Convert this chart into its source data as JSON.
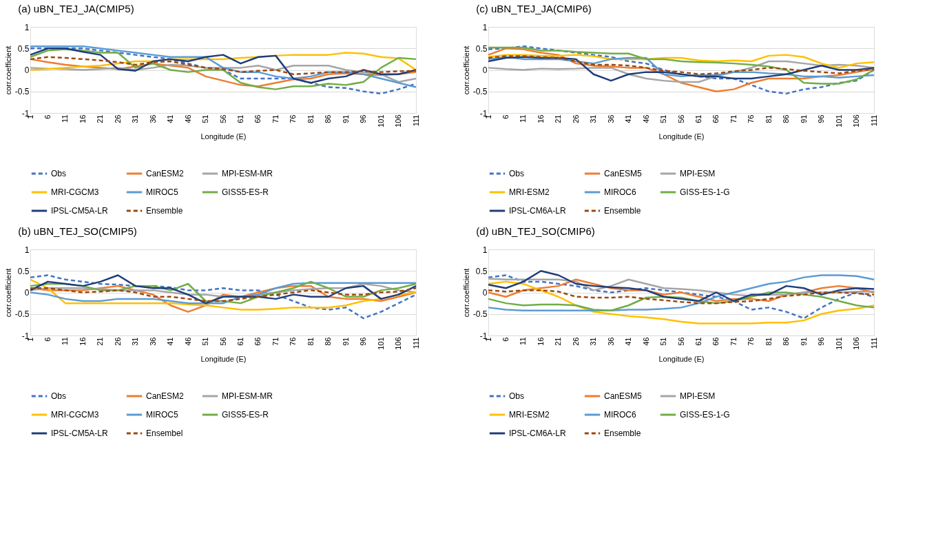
{
  "chart_data": [
    {
      "type": "line",
      "title": "uBN_TEJ_JA(CMIP5)",
      "annotations": [
        "(a)"
      ],
      "xlabel": "Longitude (E)",
      "ylabel": "corr.coefficient",
      "x": [
        1,
        6,
        11,
        16,
        21,
        26,
        31,
        36,
        41,
        46,
        51,
        56,
        61,
        66,
        71,
        76,
        81,
        86,
        91,
        96,
        101,
        106,
        111
      ],
      "xlim": [
        1,
        111
      ],
      "xticks": [
        1,
        6,
        11,
        16,
        21,
        26,
        31,
        36,
        41,
        46,
        51,
        56,
        61,
        66,
        71,
        76,
        81,
        86,
        91,
        96,
        101,
        106,
        111
      ],
      "ylim": [
        -1,
        1
      ],
      "yticks": [
        -1,
        -0.5,
        0,
        0.5,
        1
      ],
      "grid": "y",
      "legend": "bottom",
      "series": [
        {
          "name": "Obs",
          "color": "#4472c4",
          "line_style": "dashed",
          "values": [
            0.5,
            0.5,
            0.5,
            0.5,
            0.45,
            0.4,
            0.35,
            0.3,
            0.25,
            0.15,
            0.05,
            0.0,
            -0.2,
            -0.2,
            -0.2,
            -0.2,
            -0.3,
            -0.4,
            -0.42,
            -0.5,
            -0.55,
            -0.45,
            -0.32
          ]
        },
        {
          "name": "CanESM2",
          "color": "#ed7d31",
          "values": [
            0.25,
            0.18,
            0.12,
            0.08,
            0.05,
            0.02,
            0.08,
            0.15,
            0.1,
            0.05,
            -0.15,
            -0.25,
            -0.35,
            -0.38,
            -0.3,
            -0.22,
            -0.2,
            -0.1,
            -0.08,
            -0.1,
            -0.12,
            -0.1,
            -0.05
          ]
        },
        {
          "name": "MPI-ESM-MR",
          "color": "#a5a5a5",
          "values": [
            0.05,
            0.03,
            0.02,
            0.0,
            0.02,
            0.05,
            0.0,
            0.05,
            0.12,
            0.1,
            0.05,
            0.05,
            0.05,
            0.1,
            0.0,
            0.1,
            0.1,
            0.1,
            0.0,
            -0.05,
            -0.1,
            -0.28,
            -0.2
          ]
        },
        {
          "name": "MRI-CGCM3",
          "color": "#ffc000",
          "values": [
            0.0,
            0.02,
            0.05,
            0.08,
            0.1,
            0.15,
            0.2,
            0.2,
            0.25,
            0.25,
            0.25,
            0.25,
            0.28,
            0.3,
            0.33,
            0.35,
            0.35,
            0.35,
            0.4,
            0.38,
            0.3,
            0.27,
            0.0
          ]
        },
        {
          "name": "MIROC5",
          "color": "#5b9bd5",
          "values": [
            0.55,
            0.55,
            0.55,
            0.55,
            0.5,
            0.45,
            0.4,
            0.35,
            0.3,
            0.3,
            0.3,
            0.05,
            -0.05,
            -0.05,
            -0.15,
            -0.2,
            -0.15,
            -0.05,
            -0.05,
            -0.1,
            -0.2,
            -0.3,
            -0.4
          ]
        },
        {
          "name": "GISS5-ES-R",
          "color": "#70ad47",
          "values": [
            0.3,
            0.45,
            0.48,
            0.45,
            0.4,
            0.4,
            0.05,
            0.15,
            0.0,
            -0.05,
            0.0,
            0.0,
            -0.3,
            -0.4,
            -0.45,
            -0.38,
            -0.38,
            -0.32,
            -0.35,
            -0.28,
            0.05,
            0.28,
            0.25
          ]
        },
        {
          "name": "IPSL-CM5A-LR",
          "color": "#1f3d7a",
          "values": [
            0.35,
            0.5,
            0.5,
            0.42,
            0.35,
            0.02,
            -0.02,
            0.2,
            0.25,
            0.2,
            0.3,
            0.35,
            0.15,
            0.3,
            0.33,
            -0.2,
            -0.3,
            -0.2,
            -0.15,
            0.0,
            -0.1,
            -0.1,
            0.0
          ]
        },
        {
          "name": "Ensemble",
          "color": "#9e480e",
          "line_style": "dashed",
          "values": [
            0.25,
            0.3,
            0.28,
            0.25,
            0.22,
            0.18,
            0.12,
            0.18,
            0.2,
            0.12,
            0.05,
            0.02,
            -0.05,
            -0.02,
            0.0,
            -0.1,
            -0.08,
            -0.05,
            -0.05,
            -0.03,
            -0.05,
            -0.03,
            -0.02
          ]
        }
      ]
    },
    {
      "type": "line",
      "title": "uBN_TEJ_JA(CMIP6)",
      "annotations": [
        "(c)"
      ],
      "xlabel": "Longitude (E)",
      "ylabel": "corr.coefficient",
      "x": [
        1,
        6,
        11,
        16,
        21,
        26,
        31,
        36,
        41,
        46,
        51,
        56,
        61,
        66,
        71,
        76,
        81,
        86,
        91,
        96,
        101,
        106,
        111
      ],
      "xlim": [
        1,
        111
      ],
      "xticks": [
        1,
        6,
        11,
        16,
        21,
        26,
        31,
        36,
        41,
        46,
        51,
        56,
        61,
        66,
        71,
        76,
        81,
        86,
        91,
        96,
        101,
        106,
        111
      ],
      "ylim": [
        -1,
        1
      ],
      "yticks": [
        -1,
        -0.5,
        0,
        0.5,
        1
      ],
      "grid": "y",
      "legend": "bottom",
      "series": [
        {
          "name": "Obs",
          "color": "#4472c4",
          "line_style": "dashed",
          "values": [
            0.48,
            0.5,
            0.55,
            0.5,
            0.45,
            0.4,
            0.35,
            0.3,
            0.2,
            0.15,
            0.0,
            -0.1,
            -0.15,
            -0.2,
            -0.2,
            -0.35,
            -0.5,
            -0.55,
            -0.45,
            -0.4,
            -0.3,
            -0.25,
            0.0
          ]
        },
        {
          "name": "CanESM5",
          "color": "#ed7d31",
          "values": [
            0.35,
            0.5,
            0.48,
            0.4,
            0.35,
            0.15,
            0.1,
            0.08,
            0.05,
            0.05,
            -0.1,
            -0.3,
            -0.4,
            -0.5,
            -0.45,
            -0.3,
            -0.2,
            -0.2,
            -0.2,
            -0.15,
            -0.12,
            -0.05,
            0.02
          ]
        },
        {
          "name": "MPI-ESM",
          "color": "#a5a5a5",
          "values": [
            0.05,
            0.02,
            0.0,
            0.03,
            0.02,
            0.03,
            0.05,
            0.05,
            -0.1,
            -0.2,
            -0.25,
            -0.28,
            -0.28,
            -0.15,
            -0.05,
            0.05,
            0.2,
            0.2,
            0.15,
            0.1,
            0.12,
            0.1,
            0.05
          ]
        },
        {
          "name": "MRI-ESM2",
          "color": "#ffc000",
          "values": [
            0.3,
            0.35,
            0.35,
            0.33,
            0.33,
            0.35,
            0.32,
            0.25,
            0.25,
            0.25,
            0.28,
            0.28,
            0.22,
            0.2,
            0.22,
            0.2,
            0.33,
            0.35,
            0.3,
            0.15,
            0.05,
            0.15,
            0.18
          ]
        },
        {
          "name": "MIROC6",
          "color": "#5b9bd5",
          "values": [
            0.25,
            0.3,
            0.25,
            0.25,
            0.25,
            0.2,
            0.15,
            0.25,
            0.28,
            0.28,
            -0.1,
            -0.15,
            -0.12,
            -0.12,
            -0.05,
            -0.05,
            -0.08,
            -0.1,
            -0.15,
            -0.15,
            -0.18,
            -0.15,
            -0.12
          ]
        },
        {
          "name": "GISS-ES-1-G",
          "color": "#70ad47",
          "values": [
            0.52,
            0.52,
            0.52,
            0.45,
            0.45,
            0.42,
            0.4,
            0.38,
            0.38,
            0.25,
            0.25,
            0.2,
            0.18,
            0.17,
            0.15,
            0.12,
            0.08,
            0.0,
            -0.3,
            -0.32,
            -0.32,
            -0.22,
            0.0
          ]
        },
        {
          "name": "IPSL-CM6A-LR",
          "color": "#1f3d7a",
          "values": [
            0.2,
            0.28,
            0.3,
            0.28,
            0.28,
            0.25,
            -0.1,
            -0.25,
            -0.1,
            -0.05,
            -0.05,
            -0.1,
            -0.15,
            -0.15,
            -0.2,
            -0.2,
            -0.15,
            -0.1,
            0.0,
            0.1,
            0.0,
            0.0,
            0.05
          ]
        },
        {
          "name": "Ensemble",
          "color": "#9e480e",
          "line_style": "dashed",
          "values": [
            0.28,
            0.32,
            0.32,
            0.3,
            0.28,
            0.2,
            0.12,
            0.12,
            0.1,
            0.05,
            -0.02,
            -0.05,
            -0.1,
            -0.08,
            -0.03,
            0.0,
            0.05,
            0.02,
            -0.02,
            -0.05,
            -0.08,
            -0.02,
            0.02
          ]
        }
      ]
    },
    {
      "type": "line",
      "title": "uBN_TEJ_SO(CMIP5)",
      "annotations": [
        "(b)"
      ],
      "xlabel": "Longitude (E)",
      "ylabel": "corr.coefficient",
      "x": [
        1,
        6,
        11,
        16,
        21,
        26,
        31,
        36,
        41,
        46,
        51,
        56,
        61,
        66,
        71,
        76,
        81,
        86,
        91,
        96,
        101,
        106,
        111
      ],
      "xlim": [
        1,
        111
      ],
      "xticks": [
        1,
        6,
        11,
        16,
        21,
        26,
        31,
        36,
        41,
        46,
        51,
        56,
        61,
        66,
        71,
        76,
        81,
        86,
        91,
        96,
        101,
        106,
        111
      ],
      "ylim": [
        -1,
        1
      ],
      "yticks": [
        -1,
        -0.5,
        0,
        0.5,
        1
      ],
      "grid": "y",
      "legend": "bottom",
      "series": [
        {
          "name": "Obs",
          "color": "#4472c4",
          "line_style": "dashed",
          "values": [
            0.35,
            0.4,
            0.3,
            0.25,
            0.2,
            0.18,
            0.15,
            0.15,
            0.12,
            0.05,
            0.05,
            0.1,
            0.05,
            0.05,
            -0.05,
            -0.2,
            -0.35,
            -0.4,
            -0.35,
            -0.6,
            -0.45,
            -0.25,
            -0.05
          ]
        },
        {
          "name": "CanESM2",
          "color": "#ed7d31",
          "values": [
            0.1,
            0.05,
            0.05,
            0.05,
            0.1,
            0.15,
            0.05,
            -0.05,
            -0.3,
            -0.45,
            -0.3,
            -0.05,
            -0.1,
            0.0,
            0.1,
            0.15,
            0.15,
            -0.1,
            -0.15,
            -0.15,
            -0.2,
            -0.1,
            0.0
          ]
        },
        {
          "name": "MPI-ESM-MR",
          "color": "#a5a5a5",
          "values": [
            0.05,
            0.1,
            0.1,
            0.1,
            0.08,
            0.05,
            0.05,
            0.05,
            0.0,
            -0.05,
            -0.05,
            -0.1,
            -0.1,
            -0.05,
            0.0,
            0.05,
            0.08,
            0.1,
            0.1,
            0.2,
            0.15,
            0.05,
            0.0
          ]
        },
        {
          "name": "MRI-CGCM3",
          "color": "#ffc000",
          "values": [
            0.3,
            0.1,
            -0.25,
            -0.25,
            -0.25,
            -0.25,
            -0.25,
            -0.25,
            -0.25,
            -0.28,
            -0.3,
            -0.35,
            -0.4,
            -0.4,
            -0.38,
            -0.35,
            -0.35,
            -0.35,
            -0.3,
            -0.2,
            -0.15,
            -0.05,
            0.0
          ]
        },
        {
          "name": "MIROC5",
          "color": "#5b9bd5",
          "values": [
            0.0,
            -0.05,
            -0.15,
            -0.2,
            -0.2,
            -0.15,
            -0.15,
            -0.15,
            -0.2,
            -0.25,
            -0.25,
            -0.25,
            -0.1,
            -0.05,
            0.1,
            0.2,
            0.22,
            0.22,
            0.22,
            0.22,
            0.22,
            0.22,
            0.22
          ]
        },
        {
          "name": "GISS5-ES-R",
          "color": "#70ad47",
          "values": [
            0.15,
            0.2,
            0.2,
            0.15,
            0.05,
            0.05,
            0.15,
            0.15,
            0.05,
            0.2,
            -0.2,
            -0.2,
            -0.25,
            -0.1,
            0.0,
            0.1,
            0.25,
            0.1,
            -0.1,
            -0.1,
            0.05,
            0.1,
            0.2
          ]
        },
        {
          "name": "IPSL-CM5A-LR",
          "color": "#1f3d7a",
          "values": [
            0.05,
            0.25,
            0.2,
            0.15,
            0.25,
            0.4,
            0.15,
            0.1,
            0.1,
            -0.05,
            -0.25,
            -0.1,
            -0.1,
            -0.1,
            -0.15,
            -0.05,
            -0.1,
            -0.1,
            0.1,
            0.15,
            -0.15,
            -0.05,
            0.15
          ]
        },
        {
          "name": "Ensembel",
          "color": "#9e480e",
          "line_style": "dashed",
          "values": [
            0.1,
            0.1,
            0.05,
            0.0,
            0.02,
            0.05,
            0.0,
            -0.1,
            -0.1,
            -0.15,
            -0.2,
            -0.2,
            -0.15,
            -0.1,
            -0.05,
            0.0,
            0.05,
            0.0,
            -0.05,
            -0.05,
            0.0,
            0.02,
            0.1
          ]
        }
      ]
    },
    {
      "type": "line",
      "title": "uBN_TEJ_SO(CMIP6)",
      "annotations": [
        "(d)"
      ],
      "xlabel": "Longitude (E)",
      "ylabel": "corr.coefficient",
      "x": [
        1,
        6,
        11,
        16,
        21,
        26,
        31,
        36,
        41,
        46,
        51,
        56,
        61,
        66,
        71,
        76,
        81,
        86,
        91,
        96,
        101,
        106,
        111
      ],
      "xlim": [
        1,
        111
      ],
      "xticks": [
        1,
        6,
        11,
        16,
        21,
        26,
        31,
        36,
        41,
        46,
        51,
        56,
        61,
        66,
        71,
        76,
        81,
        86,
        91,
        96,
        101,
        106,
        111
      ],
      "ylim": [
        -1,
        1
      ],
      "yticks": [
        -1,
        -0.5,
        0,
        0.5,
        1
      ],
      "grid": "y",
      "legend": "bottom",
      "series": [
        {
          "name": "Obs",
          "color": "#4472c4",
          "line_style": "dashed",
          "values": [
            0.35,
            0.4,
            0.25,
            0.25,
            0.2,
            0.15,
            0.05,
            0.0,
            0.05,
            0.1,
            0.05,
            0.0,
            -0.05,
            -0.1,
            -0.2,
            -0.4,
            -0.35,
            -0.45,
            -0.6,
            -0.35,
            -0.15,
            0.0,
            -0.1
          ]
        },
        {
          "name": "CanESM5",
          "color": "#ed7d31",
          "values": [
            0.0,
            -0.1,
            0.05,
            0.1,
            0.15,
            0.3,
            0.2,
            0.1,
            0.05,
            0.05,
            -0.05,
            0.0,
            -0.1,
            -0.2,
            -0.15,
            -0.15,
            -0.2,
            -0.05,
            0.0,
            0.1,
            0.15,
            0.1,
            0.0
          ]
        },
        {
          "name": "MPI-ESM",
          "color": "#a5a5a5",
          "values": [
            0.32,
            0.3,
            0.3,
            0.3,
            0.3,
            0.25,
            0.05,
            0.15,
            0.3,
            0.2,
            0.1,
            0.08,
            0.05,
            0.0,
            -0.05,
            -0.08,
            -0.05,
            -0.05,
            0.0,
            0.0,
            0.0,
            0.02,
            0.02
          ]
        },
        {
          "name": "MRI-ESM2",
          "color": "#ffc000",
          "values": [
            0.2,
            0.25,
            0.2,
            0.05,
            -0.1,
            -0.3,
            -0.45,
            -0.5,
            -0.55,
            -0.58,
            -0.62,
            -0.68,
            -0.72,
            -0.72,
            -0.72,
            -0.72,
            -0.7,
            -0.7,
            -0.65,
            -0.5,
            -0.42,
            -0.38,
            -0.3
          ]
        },
        {
          "name": "MIROC6",
          "color": "#5b9bd5",
          "values": [
            -0.35,
            -0.4,
            -0.42,
            -0.42,
            -0.42,
            -0.42,
            -0.42,
            -0.42,
            -0.4,
            -0.4,
            -0.38,
            -0.35,
            -0.25,
            -0.1,
            0.0,
            0.1,
            0.2,
            0.25,
            0.35,
            0.4,
            0.4,
            0.38,
            0.3
          ]
        },
        {
          "name": "GISS-ES-1-G",
          "color": "#70ad47",
          "values": [
            -0.15,
            -0.25,
            -0.3,
            -0.28,
            -0.28,
            -0.3,
            -0.4,
            -0.42,
            -0.3,
            -0.12,
            -0.1,
            -0.12,
            -0.2,
            -0.25,
            -0.2,
            -0.1,
            0.0,
            0.0,
            -0.05,
            -0.1,
            -0.2,
            -0.3,
            -0.35
          ]
        },
        {
          "name": "IPSL-CM6A-LR",
          "color": "#1f3d7a",
          "values": [
            0.18,
            0.1,
            0.25,
            0.5,
            0.4,
            0.2,
            0.15,
            0.12,
            0.1,
            0.05,
            -0.1,
            -0.15,
            -0.2,
            0.0,
            -0.2,
            -0.05,
            -0.05,
            0.15,
            0.1,
            -0.05,
            0.05,
            0.1,
            0.08
          ]
        },
        {
          "name": "Ensemble",
          "color": "#9e480e",
          "line_style": "dashed",
          "values": [
            0.05,
            0.02,
            0.05,
            0.05,
            0.02,
            -0.1,
            -0.12,
            -0.12,
            -0.1,
            -0.15,
            -0.18,
            -0.22,
            -0.25,
            -0.25,
            -0.22,
            -0.2,
            -0.15,
            -0.08,
            -0.05,
            0.0,
            0.0,
            -0.02,
            -0.05
          ]
        }
      ]
    }
  ]
}
